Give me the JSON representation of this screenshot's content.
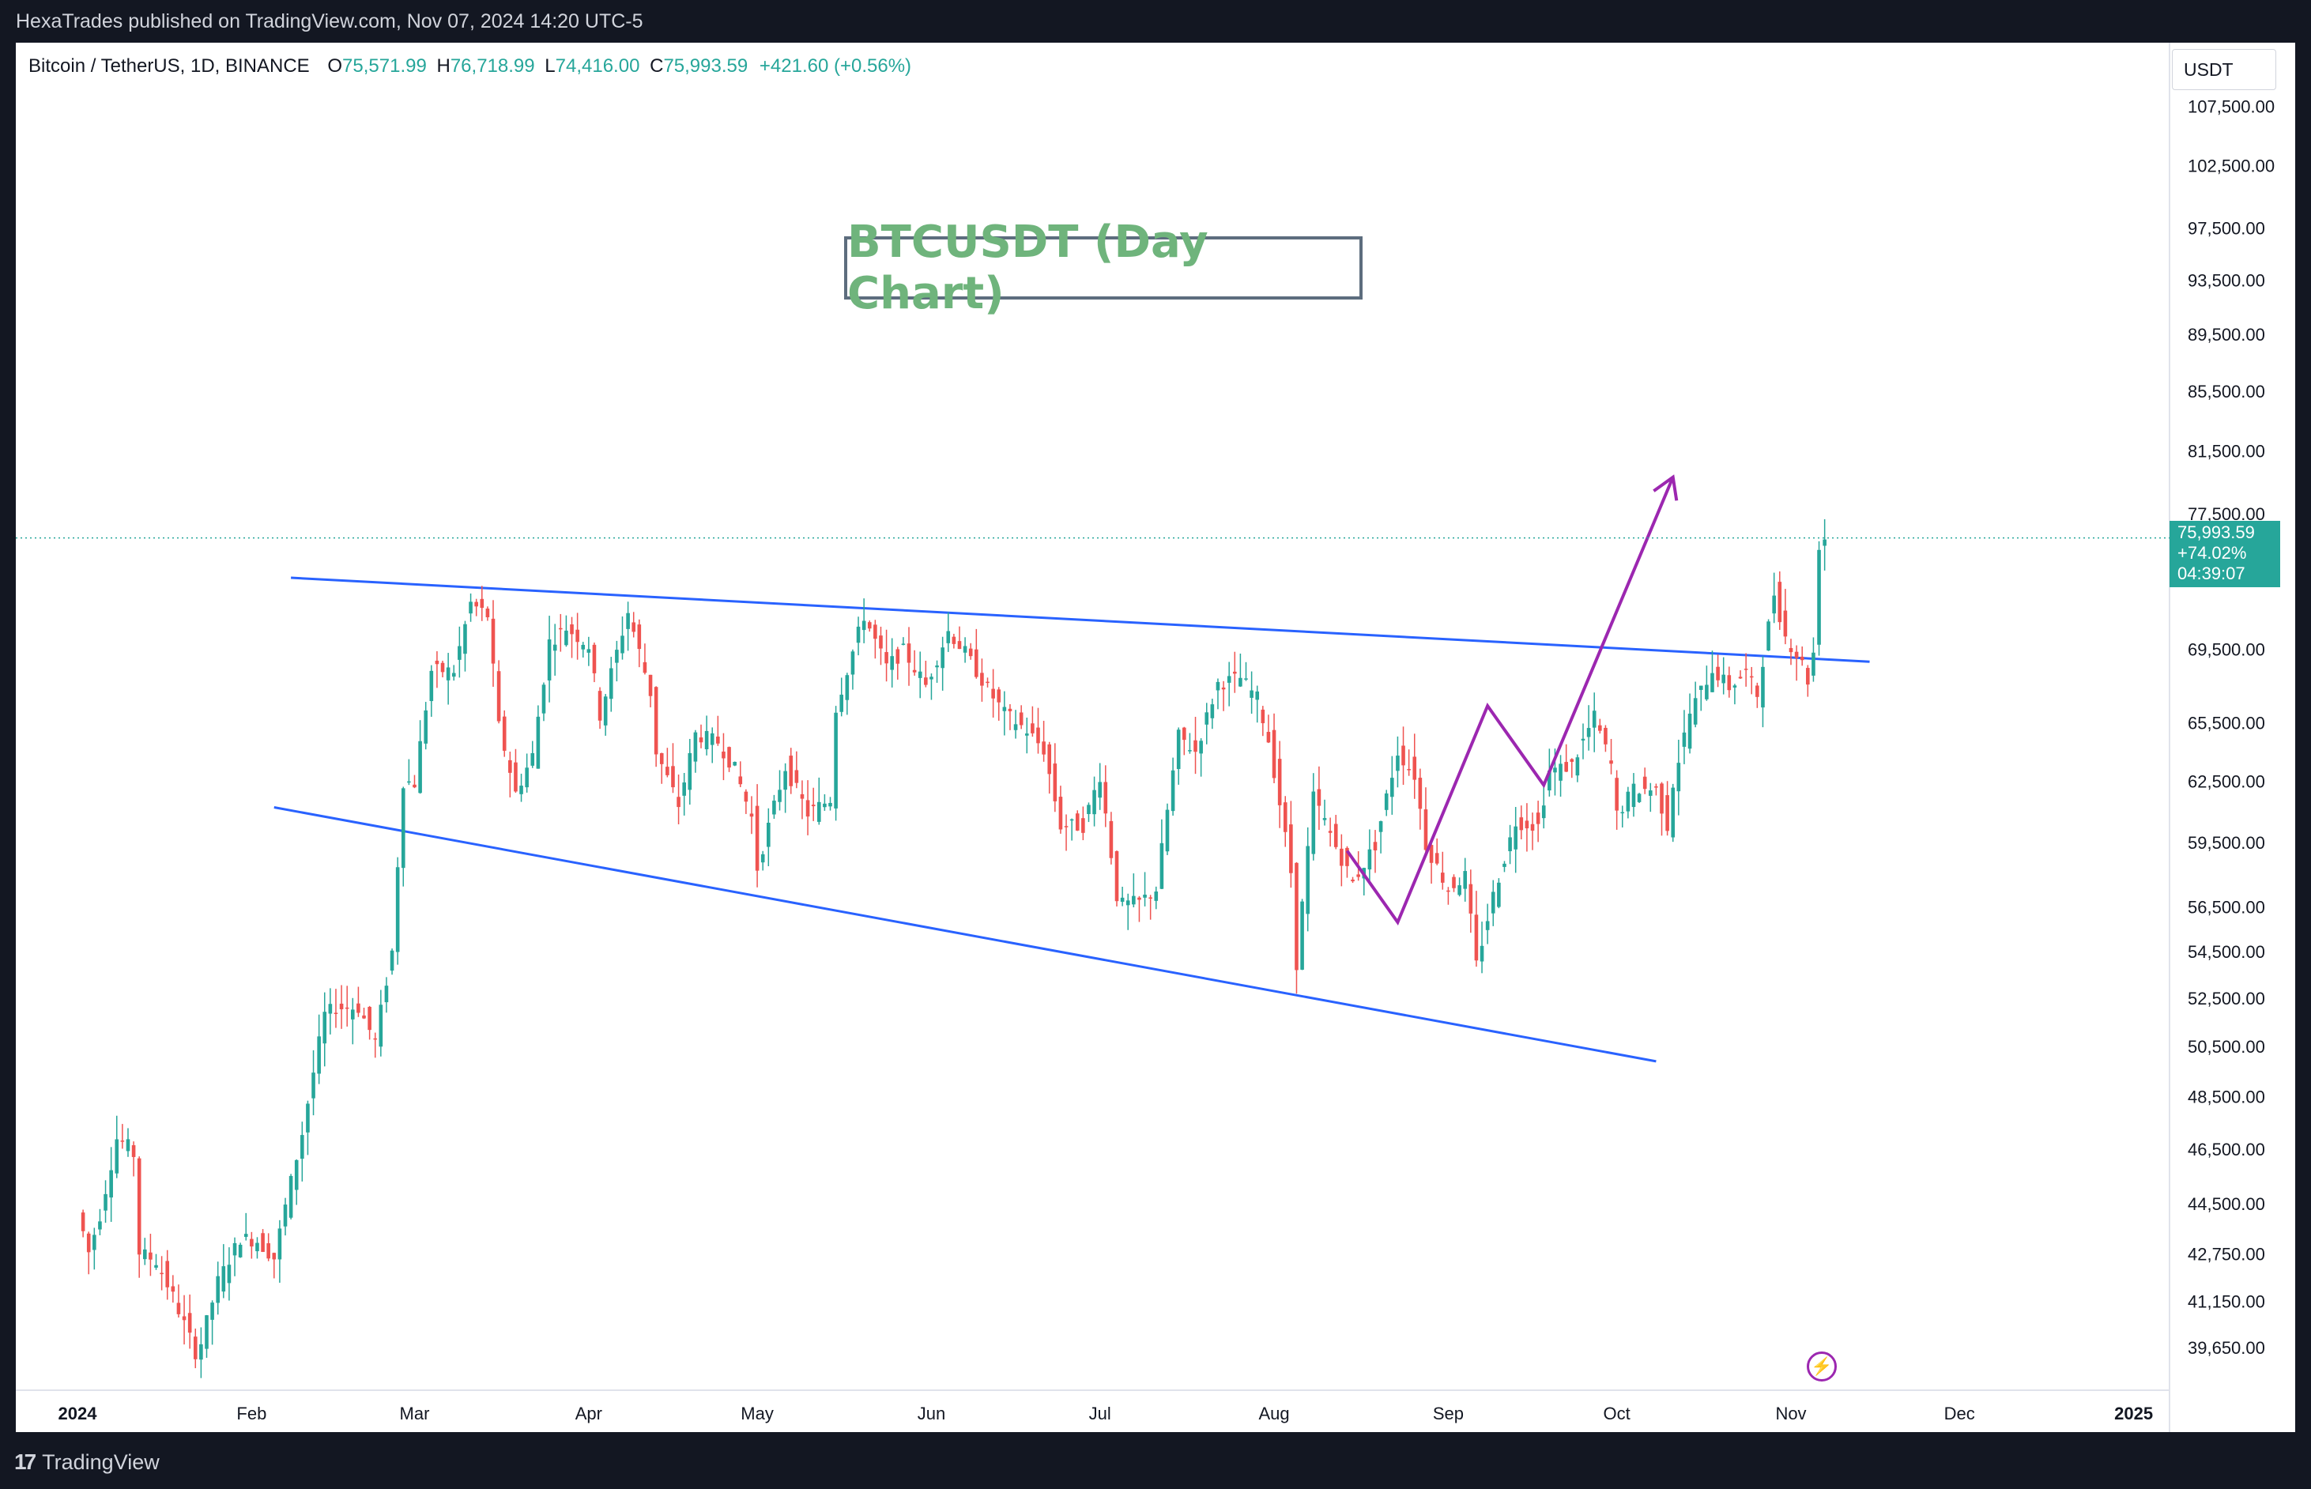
{
  "header": {
    "published": "HexaTrades published on TradingView.com, Nov 07, 2024 14:20 UTC-5"
  },
  "legend": {
    "symbol": "Bitcoin / TetherUS, 1D, BINANCE",
    "o_label": "O",
    "o": "75,571.99",
    "h_label": "H",
    "h": "76,718.99",
    "l_label": "L",
    "l": "74,416.00",
    "c_label": "C",
    "c": "75,993.59",
    "change": "+421.60 (+0.56%)"
  },
  "title_box": "BTCUSDT (Day Chart)",
  "price_scale": {
    "unit": "USDT"
  },
  "price_tag": {
    "price": "75,993.59",
    "change_pct": "+74.02%",
    "countdown": "04:39:07"
  },
  "footer": {
    "brand": "TradingView",
    "logo_icon": "tradingview-logo-icon"
  },
  "indicator_icon": "lightning-icon",
  "colors": {
    "up": "#26a69a",
    "down": "#ef5350",
    "trendline": "#2962ff",
    "projection": "#9c27b0",
    "title_text": "#6fb47c"
  },
  "chart_data": {
    "type": "candlestick",
    "instrument": "BTCUSDT",
    "timeframe": "1D",
    "scale": "log",
    "y_ticks": [
      39650,
      41150,
      42750,
      44500,
      46500,
      48500,
      50500,
      52500,
      54500,
      56500,
      59500,
      62500,
      65500,
      69500,
      77500,
      81500,
      85500,
      89500,
      93500,
      97500,
      102500,
      107500
    ],
    "y_tick_labels": [
      "39,650.00",
      "41,150.00",
      "42,750.00",
      "44,500.00",
      "46,500.00",
      "48,500.00",
      "50,500.00",
      "52,500.00",
      "54,500.00",
      "56,500.00",
      "59,500.00",
      "62,500.00",
      "65,500.00",
      "69,500.00",
      "77,500.00",
      "81,500.00",
      "85,500.00",
      "89,500.00",
      "93,500.00",
      "97,500.00",
      "102,500.00",
      "107,500.00"
    ],
    "x_tick_labels": [
      "2024",
      "Feb",
      "Mar",
      "Apr",
      "May",
      "Jun",
      "Jul",
      "Aug",
      "Sep",
      "Oct",
      "Nov",
      "Dec",
      "2025"
    ],
    "x_tick_dates": [
      "2024-01-01",
      "2024-02-01",
      "2024-03-01",
      "2024-04-01",
      "2024-05-01",
      "2024-06-01",
      "2024-07-01",
      "2024-08-01",
      "2024-09-01",
      "2024-10-01",
      "2024-11-01",
      "2024-12-01",
      "2025-01-01"
    ],
    "last_price": 75993.59,
    "closes": [
      [
        "2024-01-01",
        44200
      ],
      [
        "2024-01-03",
        42800
      ],
      [
        "2024-01-05",
        44100
      ],
      [
        "2024-01-08",
        46900
      ],
      [
        "2024-01-10",
        46600
      ],
      [
        "2024-01-11",
        46300
      ],
      [
        "2024-01-12",
        42800
      ],
      [
        "2024-01-15",
        42500
      ],
      [
        "2024-01-18",
        41300
      ],
      [
        "2024-01-22",
        39500
      ],
      [
        "2024-01-23",
        39800
      ],
      [
        "2024-01-26",
        41800
      ],
      [
        "2024-01-30",
        43300
      ],
      [
        "2024-02-02",
        43200
      ],
      [
        "2024-02-05",
        42600
      ],
      [
        "2024-02-08",
        45300
      ],
      [
        "2024-02-10",
        47100
      ],
      [
        "2024-02-14",
        51800
      ],
      [
        "2024-02-16",
        52100
      ],
      [
        "2024-02-20",
        52100
      ],
      [
        "2024-02-23",
        50700
      ],
      [
        "2024-02-26",
        54500
      ],
      [
        "2024-02-28",
        62500
      ],
      [
        "2024-03-01",
        62400
      ],
      [
        "2024-03-04",
        68300
      ],
      [
        "2024-03-08",
        68300
      ],
      [
        "2024-03-11",
        72100
      ],
      [
        "2024-03-14",
        71400
      ],
      [
        "2024-03-16",
        65300
      ],
      [
        "2024-03-19",
        61900
      ],
      [
        "2024-03-22",
        63800
      ],
      [
        "2024-03-25",
        69900
      ],
      [
        "2024-03-28",
        70700
      ],
      [
        "2024-04-01",
        69700
      ],
      [
        "2024-04-03",
        65900
      ],
      [
        "2024-04-08",
        71600
      ],
      [
        "2024-04-12",
        67100
      ],
      [
        "2024-04-13",
        64000
      ],
      [
        "2024-04-17",
        61300
      ],
      [
        "2024-04-20",
        64900
      ],
      [
        "2024-04-24",
        64500
      ],
      [
        "2024-04-27",
        63100
      ],
      [
        "2024-04-30",
        60700
      ],
      [
        "2024-05-01",
        58300
      ],
      [
        "2024-05-06",
        63200
      ],
      [
        "2024-05-10",
        60900
      ],
      [
        "2024-05-14",
        61600
      ],
      [
        "2024-05-15",
        66300
      ],
      [
        "2024-05-20",
        71400
      ],
      [
        "2024-05-24",
        68500
      ],
      [
        "2024-05-27",
        69400
      ],
      [
        "2024-05-31",
        67500
      ],
      [
        "2024-06-04",
        70500
      ],
      [
        "2024-06-07",
        69300
      ],
      [
        "2024-06-11",
        67300
      ],
      [
        "2024-06-14",
        66000
      ],
      [
        "2024-06-18",
        65100
      ],
      [
        "2024-06-21",
        64100
      ],
      [
        "2024-06-24",
        60300
      ],
      [
        "2024-06-28",
        60300
      ],
      [
        "2024-07-01",
        62800
      ],
      [
        "2024-07-04",
        57000
      ],
      [
        "2024-07-05",
        56600
      ],
      [
        "2024-07-08",
        56700
      ],
      [
        "2024-07-11",
        57300
      ],
      [
        "2024-07-15",
        64800
      ],
      [
        "2024-07-18",
        64000
      ],
      [
        "2024-07-22",
        67600
      ],
      [
        "2024-07-26",
        67900
      ],
      [
        "2024-07-29",
        66800
      ],
      [
        "2024-07-31",
        64600
      ],
      [
        "2024-08-02",
        61400
      ],
      [
        "2024-08-04",
        58100
      ],
      [
        "2024-08-05",
        54000
      ],
      [
        "2024-08-08",
        61700
      ],
      [
        "2024-08-12",
        59300
      ],
      [
        "2024-08-15",
        57600
      ],
      [
        "2024-08-19",
        59400
      ],
      [
        "2024-08-23",
        64000
      ],
      [
        "2024-08-26",
        62800
      ],
      [
        "2024-08-28",
        59400
      ],
      [
        "2024-09-01",
        57300
      ],
      [
        "2024-09-04",
        57900
      ],
      [
        "2024-09-06",
        53900
      ],
      [
        "2024-09-09",
        57000
      ],
      [
        "2024-09-13",
        60500
      ],
      [
        "2024-09-17",
        60300
      ],
      [
        "2024-09-19",
        63000
      ],
      [
        "2024-09-23",
        63300
      ],
      [
        "2024-09-27",
        65800
      ],
      [
        "2024-09-30",
        63300
      ],
      [
        "2024-10-01",
        60800
      ],
      [
        "2024-10-04",
        62100
      ],
      [
        "2024-10-08",
        62100
      ],
      [
        "2024-10-10",
        60300
      ],
      [
        "2024-10-11",
        62400
      ],
      [
        "2024-10-14",
        66000
      ],
      [
        "2024-10-18",
        68400
      ],
      [
        "2024-10-21",
        67400
      ],
      [
        "2024-10-24",
        68200
      ],
      [
        "2024-10-26",
        67000
      ],
      [
        "2024-10-29",
        72700
      ],
      [
        "2024-10-31",
        70200
      ],
      [
        "2024-11-03",
        68700
      ],
      [
        "2024-11-04",
        67800
      ],
      [
        "2024-11-05",
        69300
      ],
      [
        "2024-11-06",
        75600
      ],
      [
        "2024-11-07",
        75993.59
      ]
    ],
    "trendlines": [
      {
        "name": "upper",
        "from": [
          "2024-02-08",
          73600
        ],
        "to": [
          "2024-11-15",
          68800
        ]
      },
      {
        "name": "lower",
        "from": [
          "2024-02-05",
          61200
        ],
        "to": [
          "2024-10-08",
          49900
        ]
      }
    ],
    "projection_path": [
      [
        "2024-08-14",
        59100
      ],
      [
        "2024-08-23",
        55800
      ],
      [
        "2024-09-08",
        66400
      ],
      [
        "2024-09-18",
        62300
      ],
      [
        "2024-10-11",
        79800
      ]
    ]
  }
}
